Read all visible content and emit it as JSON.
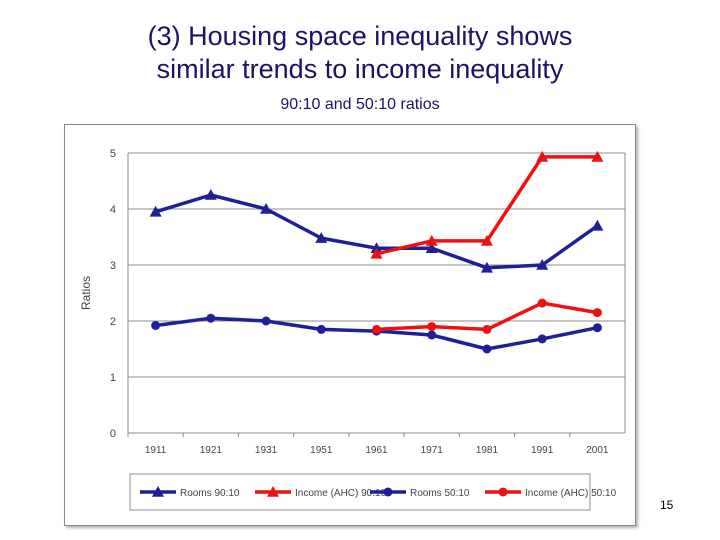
{
  "slide": {
    "title_line1": "(3) Housing space inequality shows",
    "title_line2": "similar trends to income inequality",
    "subtitle": "90:10 and 50:10 ratios",
    "page_number": "15"
  },
  "chart_data": {
    "type": "line",
    "categories": [
      "1911",
      "1921",
      "1931",
      "1951",
      "1961",
      "1971",
      "1981",
      "1991",
      "2001"
    ],
    "ylabel": "Ratios",
    "xlabel": "",
    "ylim": [
      0,
      5
    ],
    "yticks": [
      "0",
      "1",
      "2",
      "3",
      "4",
      "5"
    ],
    "grid": true,
    "legend_position": "bottom",
    "series": [
      {
        "name": "Rooms 90:10",
        "color": "#1f1f99",
        "marker": "triangle",
        "values": [
          3.95,
          4.25,
          4.0,
          3.48,
          3.3,
          3.3,
          2.95,
          3.0,
          3.7
        ]
      },
      {
        "name": "Income (AHC) 90:10",
        "color": "#ee1111",
        "marker": "triangle",
        "values": [
          null,
          null,
          null,
          null,
          3.2,
          3.43,
          3.43,
          4.93,
          4.93
        ]
      },
      {
        "name": "Rooms 50:10",
        "color": "#1f1f99",
        "marker": "circle",
        "values": [
          1.92,
          2.05,
          2.0,
          1.85,
          1.82,
          1.75,
          1.5,
          1.68,
          1.88
        ]
      },
      {
        "name": "Income (AHC) 50:10",
        "color": "#ee1111",
        "marker": "circle",
        "values": [
          null,
          null,
          null,
          null,
          1.85,
          1.9,
          1.85,
          2.32,
          2.15
        ]
      }
    ]
  }
}
